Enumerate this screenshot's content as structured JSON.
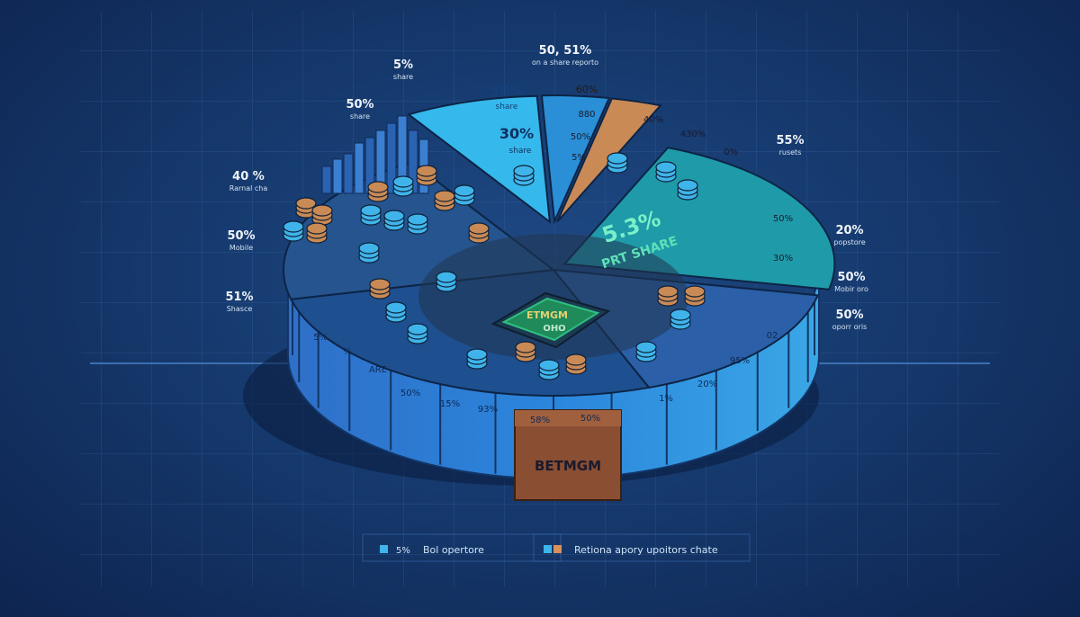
{
  "chart_data": {
    "type": "pie",
    "brand_label": "BETMGM",
    "center_label_top": "ETMGM",
    "center_label_bottom": "OHO",
    "slices": [
      {
        "name": "50%",
        "sub": "share",
        "value": 8,
        "color": "#35b8ec"
      },
      {
        "name": "30%",
        "sub": "share",
        "value": 4,
        "color": "#2a8fd6"
      },
      {
        "name": "60%",
        "sub": "",
        "value": 3,
        "color": "#c98a55"
      },
      {
        "name": "5.3%",
        "sub": "PRT SHARE",
        "value": 22,
        "color": "#1f9aa8"
      },
      {
        "name": "",
        "sub": "",
        "value": 16,
        "color": "#2b5fa8"
      },
      {
        "name": "",
        "sub": "",
        "value": 27,
        "color": "#1e4f8f"
      },
      {
        "name": "",
        "sub": "",
        "value": 20,
        "color": "#25548f"
      }
    ],
    "side_labels": [
      {
        "value": "5%",
        "text": "share"
      },
      {
        "value": "50, 51%",
        "text": "on a share reporto"
      },
      {
        "value": "50%",
        "text": "share"
      },
      {
        "value": "55%",
        "text": "rusets"
      },
      {
        "value": "40 %",
        "text": "Rarnal cha"
      },
      {
        "value": "20%",
        "text": "popstore"
      },
      {
        "value": "50%",
        "text": "Mobile"
      },
      {
        "value": "50%",
        "text": "Mobir oro"
      },
      {
        "value": "51%",
        "text": "Shasce"
      },
      {
        "value": "50%",
        "text": "oporr oris"
      }
    ],
    "slice_inner_labels": [
      "880",
      "50%",
      "5%",
      "40%",
      "430%",
      "0%",
      "50%",
      "30%"
    ],
    "ring_labels": [
      "5%",
      "%",
      "ARE",
      "50%",
      "15%",
      "93%",
      "58%",
      "50%",
      "1%",
      "20%",
      "95%",
      "02"
    ],
    "legend": [
      {
        "label": "5%",
        "color": "#3fb4ea"
      },
      {
        "label": "Bol opertore",
        "color": "#3fb4ea"
      },
      {
        "label": "Retiona apory upoitors chate",
        "color": "#3fb4ea",
        "color2": "#d9905a"
      }
    ]
  }
}
